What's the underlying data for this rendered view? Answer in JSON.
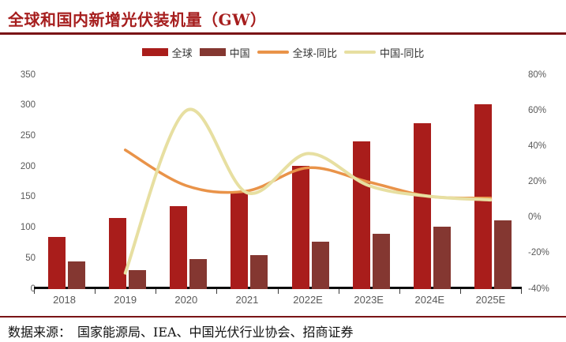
{
  "header": {
    "title": "全球和国内新增光伏装机量（GW）"
  },
  "footer": {
    "source": "数据来源：　国家能源局、IEA、中国光伏行业协会、招商证券"
  },
  "colors": {
    "title_red": "#A61E1E",
    "rule_red": "#7A1416",
    "global_bar": "#A91D1B",
    "china_bar": "#843731",
    "global_line": "#E99349",
    "china_line": "#E7DFA1",
    "axis_text": "#595959",
    "legend_text": "#333333",
    "axis_line": "#0d0d0d"
  },
  "chart_data": {
    "type": "bar",
    "subtype": "combo-bar-line-dual-axis",
    "title": "全球和国内新增光伏装机量（GW）",
    "categories": [
      "2018",
      "2019",
      "2020",
      "2021",
      "2022E",
      "2023E",
      "2024E",
      "2025E"
    ],
    "series": [
      {
        "name": "全球",
        "render": "bar",
        "axis": "left",
        "unit": "GW",
        "values": [
          85,
          116,
          135,
          158,
          202,
          242,
          271,
          302
        ]
      },
      {
        "name": "中国",
        "render": "bar",
        "axis": "left",
        "unit": "GW",
        "values": [
          45,
          31,
          49,
          56,
          77,
          91,
          102,
          112
        ]
      },
      {
        "name": "全球-同比",
        "render": "line",
        "axis": "right",
        "unit": "%",
        "values": [
          null,
          38,
          18,
          15,
          28,
          20,
          12,
          11
        ]
      },
      {
        "name": "中国-同比",
        "render": "line",
        "axis": "right",
        "unit": "%",
        "values": [
          null,
          -31,
          60,
          14,
          36,
          18,
          12,
          10
        ]
      }
    ],
    "left_axis": {
      "min": 0,
      "max": 350,
      "step": 50,
      "ticks": [
        "350",
        "300",
        "250",
        "200",
        "150",
        "100",
        "50",
        "0"
      ]
    },
    "right_axis": {
      "min": -40,
      "max": 80,
      "step": 20,
      "ticks": [
        "80%",
        "60%",
        "40%",
        "20%",
        "0%",
        "-20%",
        "-40%"
      ]
    },
    "legend": [
      "全球",
      "中国",
      "全球-同比",
      "中国-同比"
    ],
    "grid": false,
    "legend_position": "top-center"
  }
}
